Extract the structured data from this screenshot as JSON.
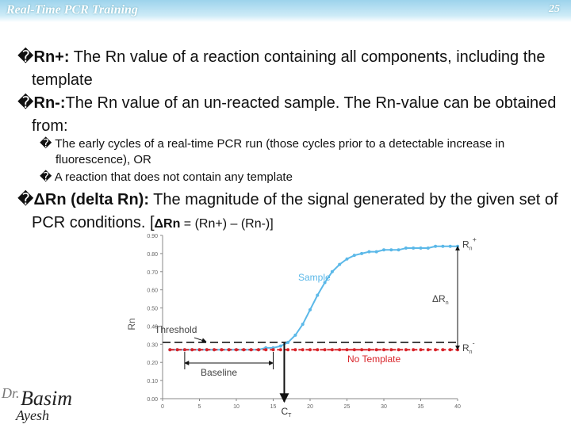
{
  "header": {
    "title": "Real-Time PCR Training",
    "page": "25"
  },
  "bullets": [
    {
      "marker": "�",
      "lead": "Rn+:",
      "text": " The Rn value of a reaction containing all components, including the template"
    },
    {
      "marker": "�",
      "lead": "Rn-:",
      "text": "The Rn value of an un-reacted sample. The Rn-value can be obtained from:",
      "subs": [
        {
          "marker": "�",
          "text": "The early cycles of a real-time PCR run (those cycles prior to a detectable increase in fluorescence), OR"
        },
        {
          "marker": "�",
          "text": "A reaction that does not contain any template"
        }
      ]
    },
    {
      "marker": "�",
      "lead": "ΔRn (delta Rn):",
      "text": " The magnitude of the signal generated by the given set of PCR conditions. [",
      "formula_lead": "ΔRn",
      "formula": " = (Rn+) – (Rn-)]"
    }
  ],
  "figure": {
    "y_label": "Rn",
    "ylim": [
      0,
      0.9
    ],
    "yticks": [
      {
        "value": 0,
        "label": "0.00"
      },
      {
        "value": 0.1,
        "label": "0.10"
      },
      {
        "value": 0.2,
        "label": "0.20"
      },
      {
        "value": 0.3,
        "label": "0.30"
      },
      {
        "value": 0.4,
        "label": "0.40"
      },
      {
        "value": 0.5,
        "label": "0.50"
      },
      {
        "value": 0.6,
        "label": "0.60"
      },
      {
        "value": 0.7,
        "label": "0.70"
      },
      {
        "value": 0.8,
        "label": "0.80"
      },
      {
        "value": 0.9,
        "label": "0.90"
      }
    ],
    "xlim": [
      0,
      40
    ],
    "xticks": [
      0,
      5,
      10,
      15,
      20,
      25,
      30,
      35,
      40
    ],
    "x": [
      1,
      2,
      3,
      4,
      5,
      6,
      7,
      8,
      9,
      10,
      11,
      12,
      13,
      14,
      15,
      16,
      17,
      18,
      19,
      20,
      21,
      22,
      23,
      24,
      25,
      26,
      27,
      28,
      29,
      30,
      31,
      32,
      33,
      34,
      35,
      36,
      37,
      38,
      39,
      40
    ],
    "series": [
      {
        "name": "Sample",
        "color": "#5bb8e8",
        "values": [
          0.27,
          0.27,
          0.27,
          0.27,
          0.27,
          0.27,
          0.27,
          0.27,
          0.27,
          0.27,
          0.27,
          0.27,
          0.27,
          0.28,
          0.28,
          0.29,
          0.31,
          0.35,
          0.41,
          0.49,
          0.57,
          0.64,
          0.7,
          0.74,
          0.77,
          0.79,
          0.8,
          0.81,
          0.81,
          0.82,
          0.82,
          0.82,
          0.83,
          0.83,
          0.83,
          0.83,
          0.84,
          0.84,
          0.84,
          0.84
        ]
      },
      {
        "name": "No Template",
        "color": "#d9242a",
        "values": [
          0.27,
          0.27,
          0.27,
          0.27,
          0.27,
          0.27,
          0.27,
          0.27,
          0.27,
          0.27,
          0.27,
          0.27,
          0.27,
          0.27,
          0.27,
          0.27,
          0.27,
          0.27,
          0.27,
          0.27,
          0.27,
          0.27,
          0.27,
          0.27,
          0.27,
          0.27,
          0.27,
          0.27,
          0.27,
          0.27,
          0.27,
          0.27,
          0.27,
          0.27,
          0.27,
          0.27,
          0.27,
          0.27,
          0.27,
          0.27
        ]
      }
    ],
    "threshold": {
      "label": "Threshold",
      "value": 0.31
    },
    "baseline": {
      "label": "Baseline",
      "start": 3,
      "end": 15
    },
    "ct": {
      "label": "C",
      "sub": "T",
      "value": 16.5
    },
    "rn_plus": {
      "base": "R",
      "sub": "n",
      "sup": "+"
    },
    "rn_minus": {
      "base": "R",
      "sub": "n",
      "sup": "-"
    },
    "delta": {
      "base": "ΔR",
      "sub": "n"
    }
  },
  "logo": {
    "top": "Dr.",
    "middle": "Basim",
    "bottom": "Ayesh"
  }
}
